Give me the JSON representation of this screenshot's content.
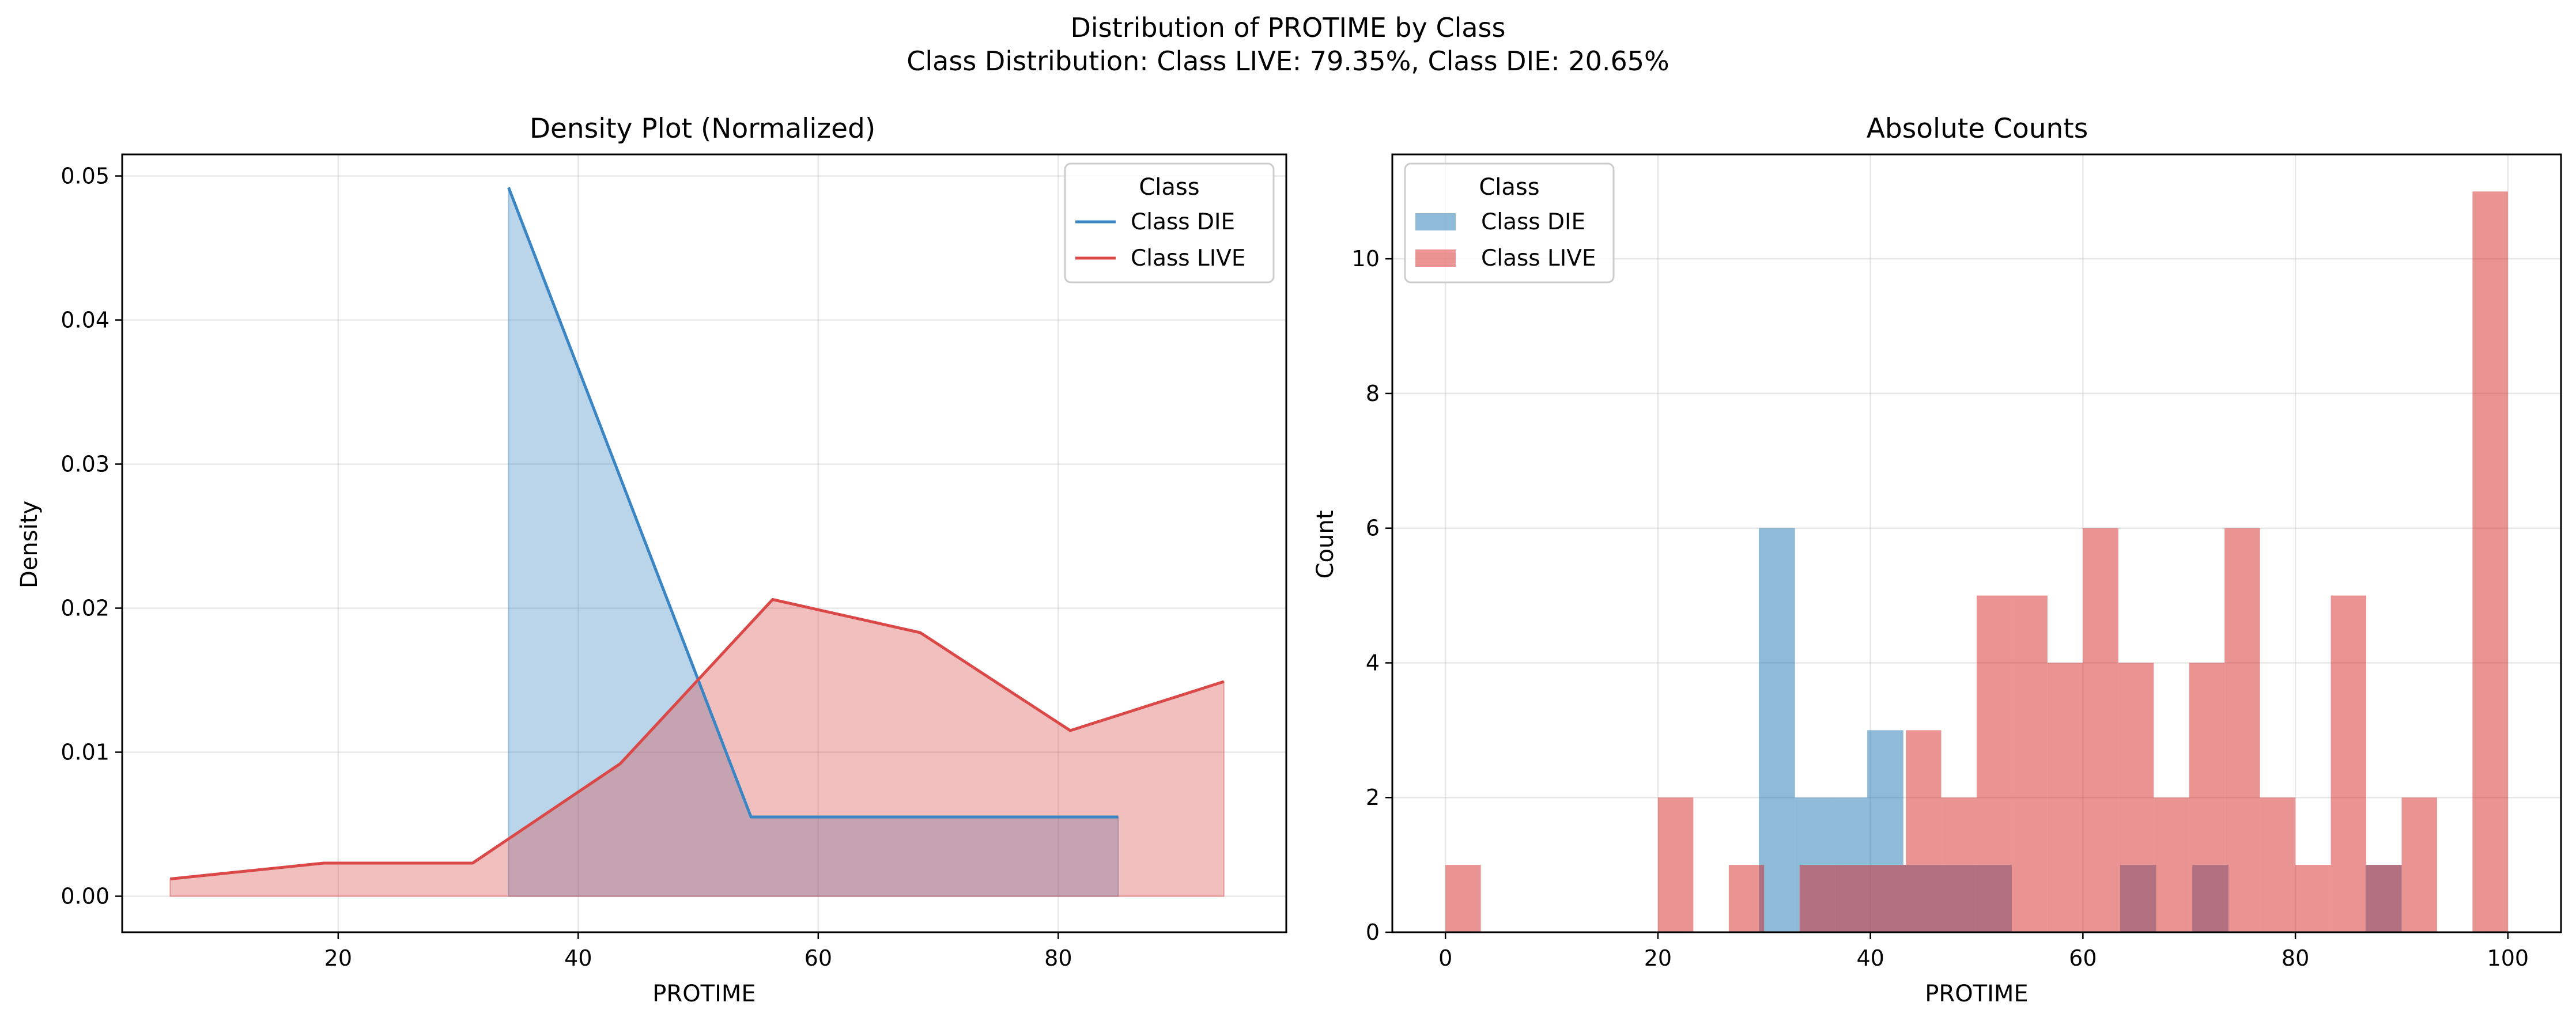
{
  "figure": {
    "suptitle_line1": "Distribution of PROTIME by Class",
    "suptitle_line2": "Class Distribution: Class LIVE: 79.35%, Class DIE: 20.65%"
  },
  "colors": {
    "die": "#3a85c3",
    "live": "#db4848"
  },
  "chart_data": [
    {
      "type": "area",
      "title": "Density Plot (Normalized)",
      "xlabel": "PROTIME",
      "ylabel": "Density",
      "xlim": [
        2,
        99
      ],
      "ylim": [
        -0.0025,
        0.0515
      ],
      "xticks": [
        20,
        40,
        60,
        80
      ],
      "yticks": [
        0.0,
        0.01,
        0.02,
        0.03,
        0.04,
        0.05
      ],
      "ytick_labels": [
        "0.00",
        "0.01",
        "0.02",
        "0.03",
        "0.04",
        "0.05"
      ],
      "grid": true,
      "legend": {
        "title": "Class",
        "placement": "top-right",
        "entries": [
          "Class DIE",
          "Class LIVE"
        ]
      },
      "series": [
        {
          "name": "Class DIE",
          "color": "#3a85c3",
          "x": [
            34.2,
            54.4,
            85.0
          ],
          "y": [
            0.0492,
            0.0055,
            0.0055
          ]
        },
        {
          "name": "Class LIVE",
          "color": "#db4848",
          "x": [
            6,
            18.8,
            31.2,
            43.5,
            56.2,
            68.5,
            81.0,
            93.8
          ],
          "y": [
            0.0012,
            0.0023,
            0.0023,
            0.0092,
            0.0206,
            0.0183,
            0.0115,
            0.0149
          ]
        }
      ]
    },
    {
      "type": "bar",
      "title": "Absolute Counts",
      "xlabel": "PROTIME",
      "ylabel": "Count",
      "xlim": [
        -5,
        105
      ],
      "ylim": [
        0,
        11.55
      ],
      "xticks": [
        0,
        20,
        40,
        60,
        80,
        100
      ],
      "yticks": [
        0,
        2,
        4,
        6,
        8,
        10
      ],
      "grid": true,
      "legend": {
        "title": "Class",
        "placement": "top-left",
        "entries": [
          "Class DIE",
          "Class LIVE"
        ]
      },
      "series": [
        {
          "name": "Class DIE",
          "color": "#1f77b4",
          "bin_width": 3.4,
          "bins": [
            {
              "x0": 29.5,
              "count": 6
            },
            {
              "x0": 32.9,
              "count": 2
            },
            {
              "x0": 36.3,
              "count": 2
            },
            {
              "x0": 39.7,
              "count": 3
            },
            {
              "x0": 43.1,
              "count": 1
            },
            {
              "x0": 46.5,
              "count": 1
            },
            {
              "x0": 49.9,
              "count": 1
            },
            {
              "x0": 63.5,
              "count": 1
            },
            {
              "x0": 70.3,
              "count": 1
            },
            {
              "x0": 86.6,
              "count": 1
            }
          ]
        },
        {
          "name": "Class LIVE",
          "color": "#d62728",
          "bin_width": 3.333,
          "bins": [
            {
              "x0": 0.0,
              "count": 1
            },
            {
              "x0": 20.0,
              "count": 2
            },
            {
              "x0": 26.667,
              "count": 1
            },
            {
              "x0": 33.333,
              "count": 1
            },
            {
              "x0": 36.667,
              "count": 1
            },
            {
              "x0": 40.0,
              "count": 1
            },
            {
              "x0": 43.333,
              "count": 3
            },
            {
              "x0": 46.667,
              "count": 2
            },
            {
              "x0": 50.0,
              "count": 5
            },
            {
              "x0": 53.333,
              "count": 5
            },
            {
              "x0": 56.667,
              "count": 4
            },
            {
              "x0": 60.0,
              "count": 6
            },
            {
              "x0": 63.333,
              "count": 4
            },
            {
              "x0": 66.667,
              "count": 2
            },
            {
              "x0": 70.0,
              "count": 4
            },
            {
              "x0": 73.333,
              "count": 6
            },
            {
              "x0": 76.667,
              "count": 2
            },
            {
              "x0": 80.0,
              "count": 1
            },
            {
              "x0": 83.333,
              "count": 5
            },
            {
              "x0": 86.667,
              "count": 1
            },
            {
              "x0": 90.0,
              "count": 2
            },
            {
              "x0": 96.667,
              "count": 11
            }
          ]
        }
      ]
    }
  ]
}
